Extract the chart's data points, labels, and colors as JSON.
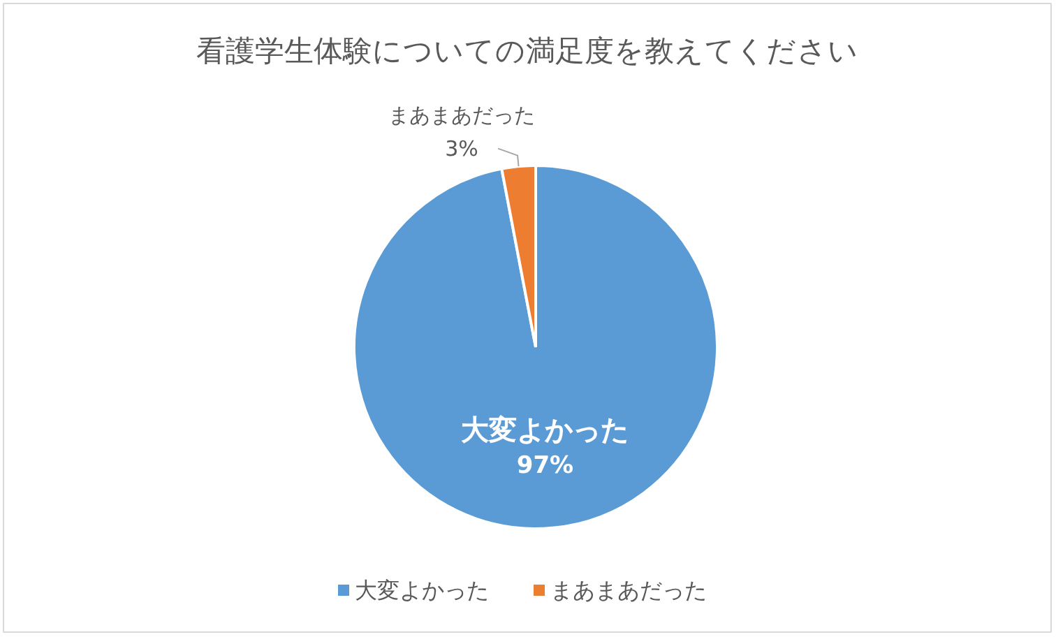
{
  "chart_data": {
    "type": "pie",
    "title": "看護学生体験についての満足度を教えてください",
    "categories": [
      "大変よかった",
      "まあまあだった"
    ],
    "values": [
      97,
      3
    ],
    "colors": [
      "#5b9bd5",
      "#ed7d31"
    ],
    "value_labels": [
      "97%",
      "3%"
    ],
    "legend": "bottom"
  }
}
